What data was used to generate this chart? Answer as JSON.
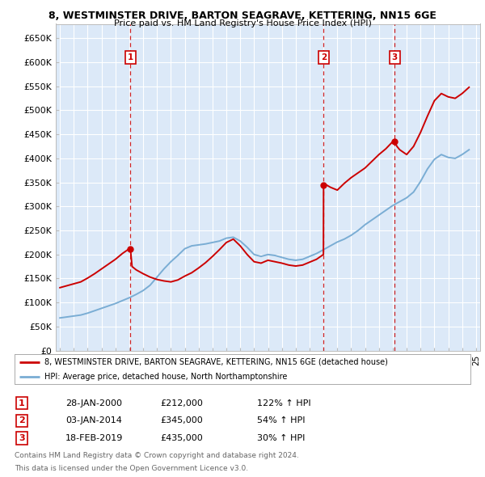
{
  "title1": "8, WESTMINSTER DRIVE, BARTON SEAGRAVE, KETTERING, NN15 6GE",
  "title2": "Price paid vs. HM Land Registry's House Price Index (HPI)",
  "ylim": [
    0,
    680000
  ],
  "yticks": [
    0,
    50000,
    100000,
    150000,
    200000,
    250000,
    300000,
    350000,
    400000,
    450000,
    500000,
    550000,
    600000,
    650000
  ],
  "ytick_labels": [
    "£0",
    "£50K",
    "£100K",
    "£150K",
    "£200K",
    "£250K",
    "£300K",
    "£350K",
    "£400K",
    "£450K",
    "£500K",
    "£550K",
    "£600K",
    "£650K"
  ],
  "xlim_start": 1994.7,
  "xlim_end": 2025.3,
  "plot_bg_color": "#dce9f8",
  "line1_color": "#cc0000",
  "line2_color": "#7aadd4",
  "transaction_dates": [
    2000.08,
    2014.01,
    2019.13
  ],
  "transaction_prices": [
    212000,
    345000,
    435000
  ],
  "transaction_labels": [
    "1",
    "2",
    "3"
  ],
  "transaction_date_str": [
    "28-JAN-2000",
    "03-JAN-2014",
    "18-FEB-2019"
  ],
  "transaction_price_str": [
    "£212,000",
    "£345,000",
    "£435,000"
  ],
  "transaction_hpi_str": [
    "122% ↑ HPI",
    "54% ↑ HPI",
    "30% ↑ HPI"
  ],
  "legend_line1": "8, WESTMINSTER DRIVE, BARTON SEAGRAVE, KETTERING, NN15 6GE (detached house)",
  "legend_line2": "HPI: Average price, detached house, North Northamptonshire",
  "footer1": "Contains HM Land Registry data © Crown copyright and database right 2024.",
  "footer2": "This data is licensed under the Open Government Licence v3.0.",
  "hpi_years": [
    1995,
    1995.5,
    1996,
    1996.5,
    1997,
    1997.5,
    1998,
    1998.5,
    1999,
    1999.5,
    2000,
    2000.5,
    2001,
    2001.5,
    2002,
    2002.5,
    2003,
    2003.5,
    2004,
    2004.5,
    2005,
    2005.5,
    2006,
    2006.5,
    2007,
    2007.5,
    2008,
    2008.5,
    2009,
    2009.5,
    2010,
    2010.5,
    2011,
    2011.5,
    2012,
    2012.5,
    2013,
    2013.5,
    2014,
    2014.5,
    2015,
    2015.5,
    2016,
    2016.5,
    2017,
    2017.5,
    2018,
    2018.5,
    2019,
    2019.5,
    2020,
    2020.5,
    2021,
    2021.5,
    2022,
    2022.5,
    2023,
    2023.5,
    2024,
    2024.5
  ],
  "hpi_values": [
    68000,
    70000,
    72000,
    74000,
    78000,
    83000,
    88000,
    93000,
    98000,
    104000,
    110000,
    117000,
    125000,
    136000,
    153000,
    170000,
    185000,
    198000,
    212000,
    218000,
    220000,
    222000,
    225000,
    228000,
    234000,
    236000,
    228000,
    215000,
    200000,
    196000,
    200000,
    198000,
    194000,
    190000,
    188000,
    190000,
    196000,
    202000,
    210000,
    218000,
    226000,
    232000,
    240000,
    250000,
    262000,
    272000,
    282000,
    292000,
    302000,
    310000,
    318000,
    330000,
    352000,
    378000,
    398000,
    408000,
    402000,
    400000,
    408000,
    418000
  ],
  "red_years": [
    1995,
    1995.5,
    1996,
    1996.5,
    1997,
    1997.5,
    1998,
    1998.5,
    1999,
    1999.5,
    2000,
    2000.08,
    2000.2,
    2000.5,
    2001,
    2001.5,
    2002,
    2002.5,
    2003,
    2003.5,
    2004,
    2004.5,
    2005,
    2005.5,
    2006,
    2006.5,
    2007,
    2007.5,
    2008,
    2008.5,
    2009,
    2009.5,
    2010,
    2010.5,
    2011,
    2011.5,
    2012,
    2012.5,
    2013,
    2013.5,
    2014,
    2014.01,
    2014.2,
    2014.5,
    2015,
    2015.5,
    2016,
    2016.5,
    2017,
    2017.5,
    2018,
    2018.5,
    2019,
    2019.13,
    2019.3,
    2019.5,
    2020,
    2020.5,
    2021,
    2021.5,
    2022,
    2022.5,
    2023,
    2023.5,
    2024,
    2024.5
  ],
  "red_values": [
    131000,
    135000,
    139000,
    143000,
    151000,
    160000,
    170000,
    180000,
    190000,
    202000,
    212000,
    212000,
    175000,
    168000,
    160000,
    153000,
    148000,
    145000,
    143000,
    147000,
    155000,
    162000,
    172000,
    183000,
    196000,
    210000,
    225000,
    232000,
    218000,
    200000,
    185000,
    182000,
    188000,
    185000,
    182000,
    178000,
    176000,
    178000,
    184000,
    190000,
    200000,
    345000,
    345000,
    340000,
    334000,
    348000,
    360000,
    370000,
    380000,
    394000,
    408000,
    420000,
    435000,
    435000,
    425000,
    418000,
    408000,
    425000,
    454000,
    488000,
    520000,
    535000,
    528000,
    525000,
    535000,
    548000
  ]
}
